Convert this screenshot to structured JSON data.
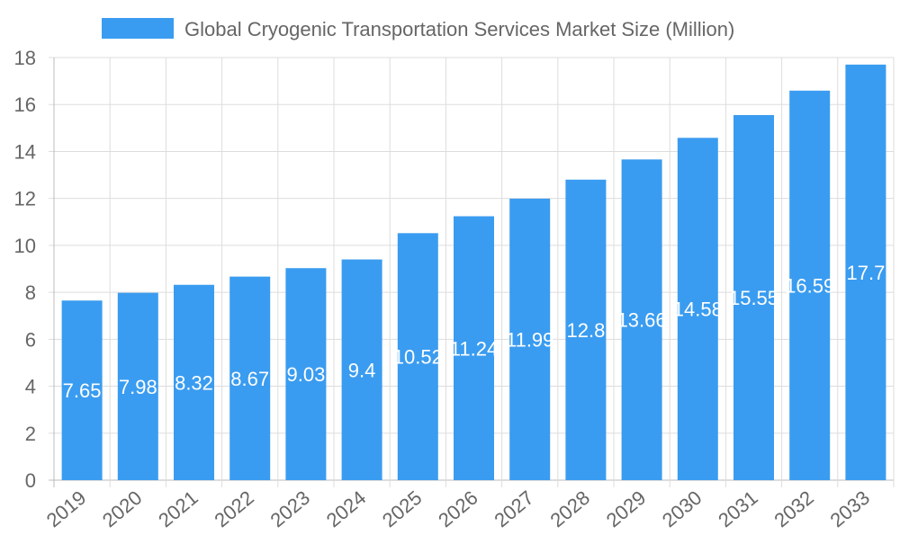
{
  "chart_data": {
    "type": "bar",
    "title": "",
    "categories": [
      "2019",
      "2020",
      "2021",
      "2022",
      "2023",
      "2024",
      "2025",
      "2026",
      "2027",
      "2028",
      "2029",
      "2030",
      "2031",
      "2032",
      "2033"
    ],
    "series": [
      {
        "name": "Global Cryogenic Transportation Services Market Size (Million)",
        "values": [
          7.65,
          7.98,
          8.32,
          8.67,
          9.03,
          9.4,
          10.52,
          11.24,
          11.99,
          12.8,
          13.66,
          14.58,
          15.55,
          16.59,
          17.7
        ]
      }
    ],
    "data_labels": [
      "7.65",
      "7.98",
      "8.32",
      "8.67",
      "9.03",
      "9.4",
      "10.52",
      "11.24",
      "11.99",
      "12.8",
      "13.66",
      "14.58",
      "15.55",
      "16.59",
      "17.7"
    ],
    "xlabel": "",
    "ylabel": "",
    "ylim": [
      0,
      18
    ],
    "yticks": [
      "0",
      "2",
      "4",
      "6",
      "8",
      "10",
      "12",
      "14",
      "16",
      "18"
    ],
    "grid": true,
    "legend_position": "top",
    "colors": {
      "bar": "#3a9cf0",
      "grid": "#dddddd",
      "text": "#666666",
      "label": "#ffffff"
    }
  }
}
